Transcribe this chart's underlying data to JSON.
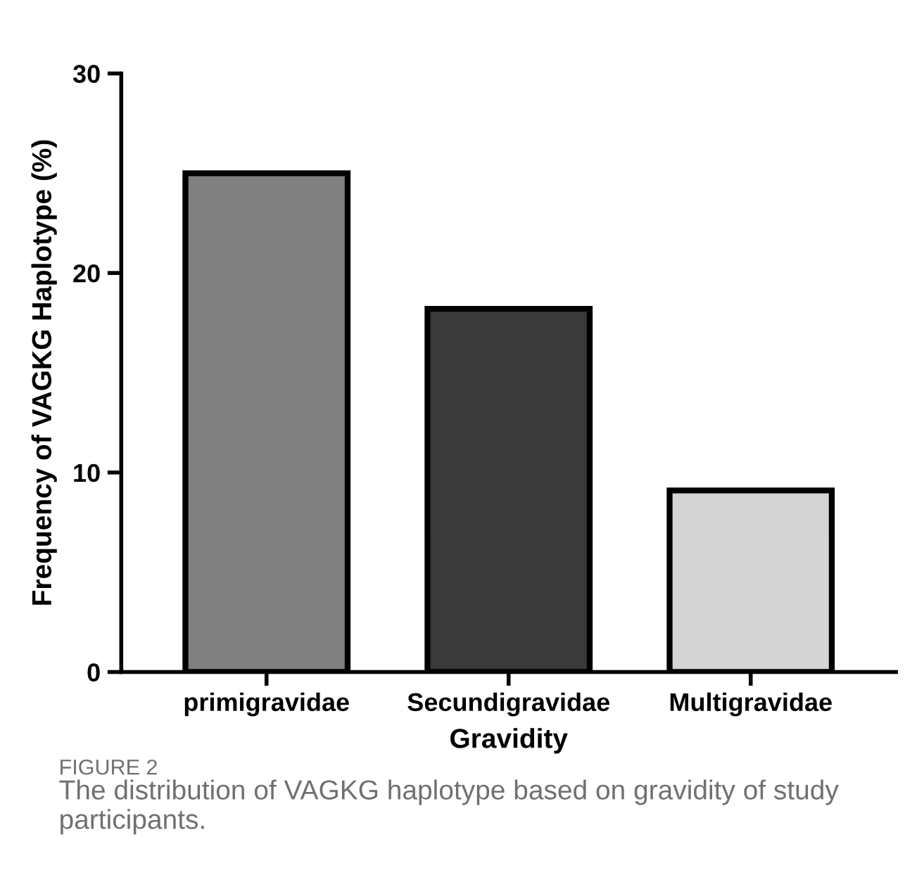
{
  "chart_data": {
    "type": "bar",
    "xlabel": "Gravidity",
    "ylabel": "Frequency of VAGKG Haplotype (%)",
    "categories": [
      "primigravidae",
      "Secundigravidae",
      "Multigravidae"
    ],
    "values": [
      25,
      18.2,
      9.1
    ],
    "colors": [
      "#808080",
      "#3a3a3a",
      "#d4d4d4"
    ],
    "ylim": [
      0,
      30
    ],
    "yticks": [
      0,
      10,
      20,
      30
    ],
    "grid": false,
    "legend": false,
    "annotations": [
      "FIGURE 2",
      "The distribution of VAGKG haplotype based on gravidity of study participants."
    ]
  }
}
